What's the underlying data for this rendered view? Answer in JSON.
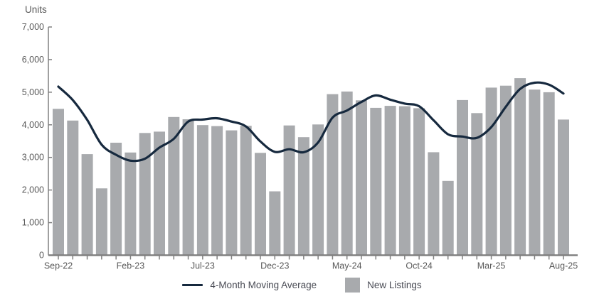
{
  "colors": {
    "bar": "#a8aaad",
    "line": "#16293e",
    "axis": "#808080",
    "axis_text": "#595959",
    "legend_text": "#4a4c55",
    "background": "#ffffff"
  },
  "chart_data": {
    "type": "bar",
    "title": "Units",
    "ylabel": "Units",
    "xlabel": "",
    "ylim": [
      0,
      7000
    ],
    "ytick_step": 1000,
    "ytick_labels": [
      "0",
      "1,000",
      "2,000",
      "3,000",
      "4,000",
      "5,000",
      "6,000",
      "7,000"
    ],
    "grid": "off",
    "legend_position": "bottom",
    "categories": [
      "Sep-22",
      "Oct-22",
      "Nov-22",
      "Dec-22",
      "Jan-23",
      "Feb-23",
      "Mar-23",
      "Apr-23",
      "May-23",
      "Jun-23",
      "Jul-23",
      "Aug-23",
      "Sep-23",
      "Oct-23",
      "Nov-23",
      "Dec-23",
      "Jan-24",
      "Feb-24",
      "Mar-24",
      "Apr-24",
      "May-24",
      "Jun-24",
      "Jul-24",
      "Aug-24",
      "Sep-24",
      "Oct-24",
      "Nov-24",
      "Dec-24",
      "Jan-25",
      "Feb-25",
      "Mar-25",
      "Apr-25",
      "May-25",
      "Jun-25",
      "Jul-25",
      "Aug-25"
    ],
    "x_axis_labels_shown": [
      "Sep-22",
      "Feb-23",
      "Jul-23",
      "Dec-23",
      "May-24",
      "Oct-24",
      "Mar-25",
      "Aug-25"
    ],
    "series": [
      {
        "name": "New Listings",
        "type": "bar",
        "color": "#a8aaad",
        "values": [
          4490,
          4130,
          3100,
          2050,
          3450,
          3150,
          3750,
          3790,
          4240,
          4170,
          3990,
          3960,
          3830,
          3970,
          3140,
          1960,
          3980,
          3620,
          4010,
          4940,
          5020,
          4750,
          4520,
          4580,
          4570,
          4510,
          3160,
          2280,
          4760,
          4360,
          5140,
          5200,
          5430,
          5080,
          5000,
          4160
        ]
      },
      {
        "name": "4-Month Moving Average",
        "type": "line",
        "color": "#16293e",
        "values": [
          5170,
          4760,
          4150,
          3390,
          3080,
          2900,
          2960,
          3300,
          3570,
          4100,
          4160,
          4200,
          4100,
          3950,
          3490,
          3170,
          3250,
          3160,
          3460,
          4220,
          4440,
          4700,
          4900,
          4770,
          4650,
          4570,
          4140,
          3710,
          3640,
          3600,
          3930,
          4550,
          5100,
          5290,
          5230,
          4960
        ]
      }
    ]
  },
  "legend": {
    "line_label": "4-Month Moving Average",
    "bar_label": "New Listings"
  }
}
